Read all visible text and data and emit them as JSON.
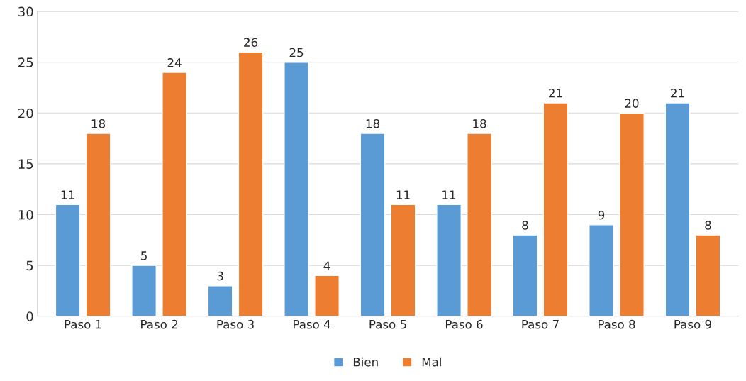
{
  "chart_data": {
    "type": "bar",
    "categories": [
      "Paso 1",
      "Paso 2",
      "Paso 3",
      "Paso 4",
      "Paso 5",
      "Paso 6",
      "Paso 7",
      "Paso 8",
      "Paso 9"
    ],
    "series": [
      {
        "name": "Bien",
        "color": "#5b9bd5",
        "values": [
          11,
          5,
          3,
          25,
          18,
          11,
          8,
          9,
          21
        ]
      },
      {
        "name": "Mal",
        "color": "#ed7d31",
        "values": [
          18,
          24,
          26,
          4,
          11,
          18,
          21,
          20,
          8
        ]
      }
    ],
    "ylim": [
      0,
      30
    ],
    "yticks": [
      0,
      5,
      10,
      15,
      20,
      25,
      30
    ],
    "grid": "y",
    "legend": "bottom",
    "data_labels": true
  }
}
